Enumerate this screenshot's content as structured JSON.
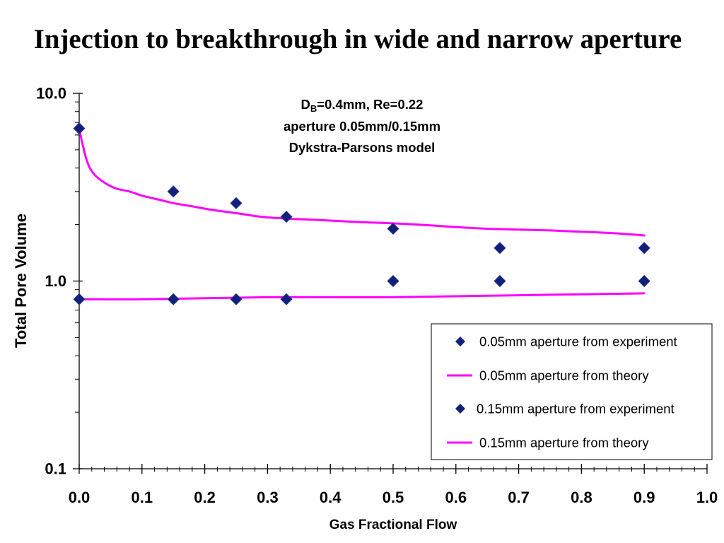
{
  "chart_data": {
    "type": "scatter",
    "title": "Injection to breakthrough in wide and narrow aperture",
    "xlabel": "Gas Fractional Flow",
    "ylabel": "Total Pore Volume",
    "xlim": [
      0.0,
      1.0
    ],
    "ylim": [
      0.1,
      10.0
    ],
    "xscale": "linear",
    "yscale": "log",
    "xtick_labels": [
      "0.0",
      "0.1",
      "0.2",
      "0.3",
      "0.4",
      "0.5",
      "0.6",
      "0.7",
      "0.8",
      "0.9",
      "1.0"
    ],
    "ytick_labels": [
      "10.0",
      "1.0",
      "0.1"
    ],
    "grid": false,
    "legend_position": "bottom-right",
    "annotation": {
      "line1": {
        "text": "D",
        "subscript": "B",
        "suffix": "=0.4mm, Re=0.22"
      },
      "line2": "aperture 0.05mm/0.15mm",
      "line3": "Dykstra-Parsons model"
    },
    "series": [
      {
        "name": "0.05mm aperture from experiment",
        "type": "scatter",
        "marker": "diamond",
        "color": "#13207a",
        "x": [
          0.0,
          0.15,
          0.25,
          0.33,
          0.5,
          0.67,
          0.9
        ],
        "y": [
          6.5,
          3.0,
          2.6,
          2.2,
          1.9,
          1.5,
          1.5
        ]
      },
      {
        "name": "0.05mm aperture from theory",
        "type": "line",
        "color": "#ff00ff",
        "x": [
          0.0,
          0.003,
          0.007,
          0.011,
          0.017,
          0.024,
          0.032,
          0.043,
          0.06,
          0.08,
          0.1,
          0.13,
          0.15,
          0.18,
          0.21,
          0.25,
          0.29,
          0.33,
          0.36,
          0.4,
          0.45,
          0.5,
          0.55,
          0.6,
          0.65,
          0.7,
          0.75,
          0.8,
          0.85,
          0.9
        ],
        "y": [
          6.5,
          5.8,
          5.1,
          4.5,
          4.0,
          3.7,
          3.5,
          3.3,
          3.1,
          3.0,
          2.85,
          2.7,
          2.6,
          2.5,
          2.4,
          2.3,
          2.2,
          2.15,
          2.13,
          2.1,
          2.06,
          2.03,
          1.99,
          1.94,
          1.9,
          1.88,
          1.86,
          1.83,
          1.8,
          1.75
        ]
      },
      {
        "name": "0.15mm aperture from experiment",
        "type": "scatter",
        "marker": "diamond",
        "color": "#13207a",
        "x": [
          0.0,
          0.15,
          0.25,
          0.33,
          0.5,
          0.67,
          0.9
        ],
        "y": [
          0.8,
          0.8,
          0.8,
          0.8,
          1.0,
          1.0,
          1.0
        ]
      },
      {
        "name": "0.15mm aperture from theory",
        "type": "line",
        "color": "#ff00ff",
        "x": [
          0.0,
          0.1,
          0.2,
          0.3,
          0.4,
          0.5,
          0.6,
          0.7,
          0.8,
          0.9
        ],
        "y": [
          0.8,
          0.8,
          0.81,
          0.82,
          0.82,
          0.82,
          0.83,
          0.84,
          0.85,
          0.86
        ]
      }
    ]
  }
}
